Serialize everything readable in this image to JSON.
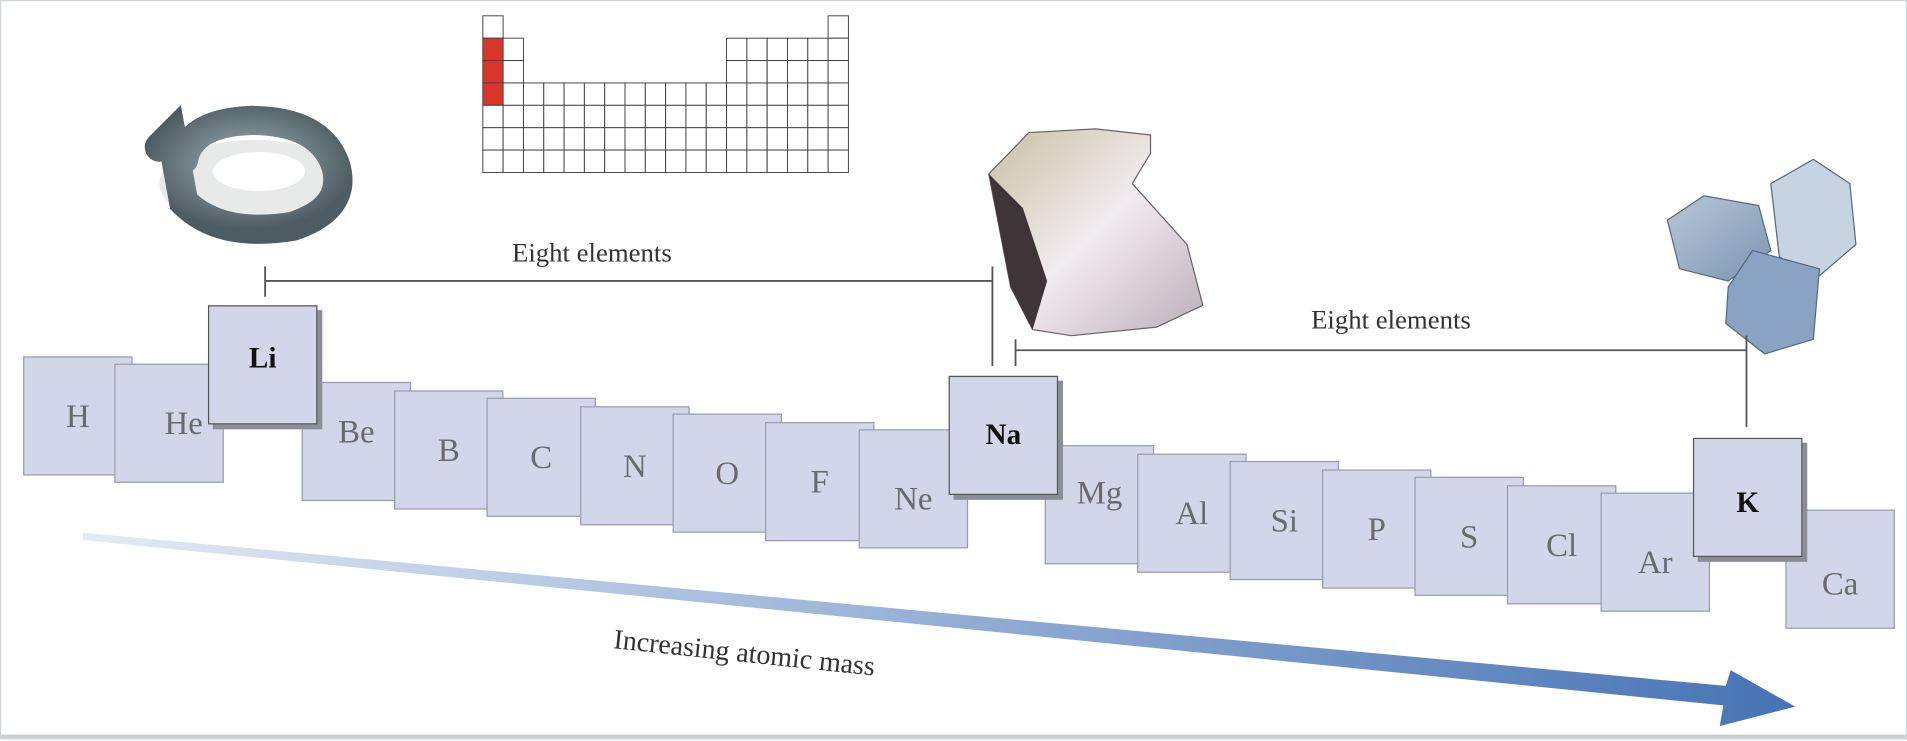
{
  "elements": [
    {
      "symbol": "H",
      "highlight": false
    },
    {
      "symbol": "He",
      "highlight": false
    },
    {
      "symbol": "Li",
      "highlight": true
    },
    {
      "symbol": "Be",
      "highlight": false
    },
    {
      "symbol": "B",
      "highlight": false
    },
    {
      "symbol": "C",
      "highlight": false
    },
    {
      "symbol": "N",
      "highlight": false
    },
    {
      "symbol": "O",
      "highlight": false
    },
    {
      "symbol": "F",
      "highlight": false
    },
    {
      "symbol": "Ne",
      "highlight": false
    },
    {
      "symbol": "Na",
      "highlight": true
    },
    {
      "symbol": "Mg",
      "highlight": false
    },
    {
      "symbol": "Al",
      "highlight": false
    },
    {
      "symbol": "Si",
      "highlight": false
    },
    {
      "symbol": "P",
      "highlight": false
    },
    {
      "symbol": "S",
      "highlight": false
    },
    {
      "symbol": "Cl",
      "highlight": false
    },
    {
      "symbol": "Ar",
      "highlight": false
    },
    {
      "symbol": "K",
      "highlight": true
    },
    {
      "symbol": "Ca",
      "highlight": false
    }
  ],
  "brackets": [
    {
      "label": "Eight elements",
      "from": "Li",
      "to": "Na"
    },
    {
      "label": "Eight elements",
      "from": "Na",
      "to": "K"
    }
  ],
  "arrow": {
    "label": "Increasing atomic mass",
    "color_start": "#e3ebf6",
    "color_end": "#4673b5"
  },
  "mini_periodic_table": {
    "highlight_color": "#d9352b",
    "highlighted_group": 1,
    "highlighted_periods": [
      2,
      3,
      4
    ]
  },
  "images": [
    "lithium-metal-coil",
    "sodium-metal-chunk",
    "potassium-metal-pieces"
  ]
}
